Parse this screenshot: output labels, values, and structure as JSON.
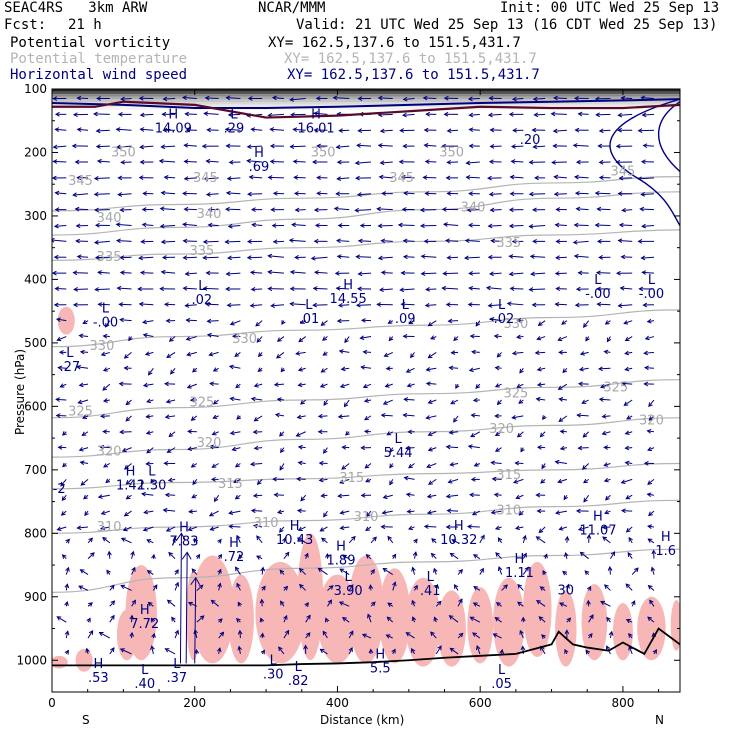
{
  "header": {
    "model": "SEAC4RS   3km ARW",
    "center": "NCAR/MMM",
    "init": "Init: 00 UTC Wed 25 Sep 13",
    "fcst_label": "Fcst:",
    "fcst_value": "21 h",
    "valid": "Valid: 21 UTC Wed 25 Sep 13 (16 CDT Wed 25 Sep 13)",
    "fields": [
      {
        "name": "Potential vorticity",
        "xy": "XY= 162.5,137.6 to 151.5,431.7",
        "color": "#000000"
      },
      {
        "name": "Potential temperature",
        "xy": "XY= 162.5,137.6 to 151.5,431.7",
        "color": "#b4b4b4"
      },
      {
        "name": "Horizontal wind speed",
        "xy": "XY= 162.5,137.6 to 151.5,431.7",
        "color": "#000080"
      }
    ]
  },
  "chart_data": {
    "type": "line",
    "title": "",
    "xlabel": "Distance (km)",
    "ylabel": "Pressure (hPa)",
    "xlim": [
      0,
      880
    ],
    "ylim": [
      1050,
      100
    ],
    "x_ticks": [
      0,
      200,
      400,
      600,
      800
    ],
    "y_ticks": [
      100,
      200,
      300,
      400,
      500,
      600,
      700,
      800,
      900,
      1000
    ],
    "x_end_labels": {
      "left": "S",
      "right": "N"
    },
    "colors": {
      "theta": "#b4b4b4",
      "wind": "#000080",
      "pv_fill": "#f7b7b7",
      "marker": "#000080",
      "terrain": "#000000",
      "tropopause": "#5a0a28"
    },
    "theta_isentropes": [
      {
        "value": 345,
        "p": [
          292,
          282,
          272,
          262,
          248,
          238
        ]
      },
      {
        "value": 340,
        "p": [
          330,
          318,
          305,
          290,
          272,
          262
        ]
      },
      {
        "value": 335,
        "p": [
          370,
          360,
          350,
          340,
          330,
          322
        ]
      },
      {
        "value": 330,
        "p": [
          506,
          490,
          480,
          472,
          460,
          448
        ]
      },
      {
        "value": 325,
        "p": [
          618,
          602,
          590,
          580,
          570,
          558
        ]
      },
      {
        "value": 320,
        "p": [
          680,
          668,
          652,
          640,
          630,
          618
        ]
      },
      {
        "value": 315,
        "p": [
          730,
          720,
          714,
          706,
          700,
          690
        ]
      },
      {
        "value": 310,
        "p": [
          800,
          790,
          780,
          770,
          758,
          748
        ]
      },
      {
        "value": 305,
        "p": [
          893,
          870,
          855,
          845,
          835,
          825
        ]
      }
    ],
    "theta_labels": [
      {
        "text": "350",
        "x": 100,
        "p": 200
      },
      {
        "text": "350",
        "x": 380,
        "p": 200
      },
      {
        "text": "350",
        "x": 560,
        "p": 200
      },
      {
        "text": "345",
        "x": 40,
        "p": 245
      },
      {
        "text": "345",
        "x": 215,
        "p": 240
      },
      {
        "text": "345",
        "x": 490,
        "p": 240
      },
      {
        "text": "345",
        "x": 800,
        "p": 230
      },
      {
        "text": "340",
        "x": 80,
        "p": 303
      },
      {
        "text": "340",
        "x": 220,
        "p": 297
      },
      {
        "text": "340",
        "x": 590,
        "p": 287
      },
      {
        "text": "335",
        "x": 80,
        "p": 365
      },
      {
        "text": "335",
        "x": 210,
        "p": 355
      },
      {
        "text": "335",
        "x": 640,
        "p": 343
      },
      {
        "text": "330",
        "x": 70,
        "p": 505
      },
      {
        "text": "330",
        "x": 270,
        "p": 494
      },
      {
        "text": "330",
        "x": 650,
        "p": 470
      },
      {
        "text": "325",
        "x": 40,
        "p": 608
      },
      {
        "text": "325",
        "x": 210,
        "p": 594
      },
      {
        "text": "325",
        "x": 650,
        "p": 580
      },
      {
        "text": "325",
        "x": 790,
        "p": 570
      },
      {
        "text": "320",
        "x": 80,
        "p": 671
      },
      {
        "text": "320",
        "x": 220,
        "p": 658
      },
      {
        "text": "320",
        "x": 630,
        "p": 636
      },
      {
        "text": "320",
        "x": 840,
        "p": 622
      },
      {
        "text": "315",
        "x": 250,
        "p": 722
      },
      {
        "text": "315",
        "x": 420,
        "p": 713
      },
      {
        "text": "315",
        "x": 640,
        "p": 708
      },
      {
        "text": "310",
        "x": 80,
        "p": 790
      },
      {
        "text": "310",
        "x": 300,
        "p": 784
      },
      {
        "text": "310",
        "x": 440,
        "p": 774
      },
      {
        "text": "310",
        "x": 640,
        "p": 764
      }
    ],
    "pv_extrema": [
      {
        "type": "H",
        "value": "14.09",
        "x": 170,
        "p": 150
      },
      {
        "type": "L",
        "value": ".29",
        "x": 255,
        "p": 150
      },
      {
        "type": "H",
        "value": "16.01",
        "x": 370,
        "p": 150
      },
      {
        "type": "H",
        "value": ".69",
        "x": 290,
        "p": 210
      },
      {
        "type": "L",
        "value": ".02",
        "x": 210,
        "p": 420
      },
      {
        "type": "H",
        "value": "14.55",
        "x": 415,
        "p": 418
      },
      {
        "type": "L",
        "value": "-.00",
        "x": 75,
        "p": 455
      },
      {
        "type": "L",
        "value": ".01",
        "x": 360,
        "p": 450
      },
      {
        "type": "L",
        "value": ".09",
        "x": 495,
        "p": 450
      },
      {
        "type": "L",
        "value": "-.02",
        "x": 630,
        "p": 450
      },
      {
        "type": "L",
        "value": "-.00",
        "x": 765,
        "p": 410
      },
      {
        "type": "L",
        "value": "-.00",
        "x": 840,
        "p": 410
      },
      {
        "type": "L",
        "value": ".27",
        "x": 25,
        "p": 525
      },
      {
        "type": "L",
        "value": "5.44",
        "x": 485,
        "p": 661
      },
      {
        "type": "H",
        "value": "1.42",
        "x": 110,
        "p": 712
      },
      {
        "type": "L",
        "value": "1.30",
        "x": 140,
        "p": 712
      },
      {
        "type": "H",
        "value": "7.83",
        "x": 185,
        "p": 800
      },
      {
        "type": "H",
        "value": "10.43",
        "x": 340,
        "p": 798
      },
      {
        "type": "H",
        "value": "10.32",
        "x": 570,
        "p": 798
      },
      {
        "type": "H",
        "value": "11.07",
        "x": 765,
        "p": 783
      },
      {
        "type": "H",
        "value": ".72",
        "x": 255,
        "p": 825
      },
      {
        "type": "H",
        "value": "1.89",
        "x": 405,
        "p": 830
      },
      {
        "type": "H",
        "value": "1.11",
        "x": 655,
        "p": 850
      },
      {
        "type": "H",
        "value": "1.6",
        "x": 860,
        "p": 815
      },
      {
        "type": "L",
        "value": "3.90",
        "x": 415,
        "p": 878
      },
      {
        "type": "L",
        "value": ".41",
        "x": 530,
        "p": 878
      },
      {
        "type": "H",
        "value": "7.72",
        "x": 130,
        "p": 930
      },
      {
        "type": "H",
        "value": ".53",
        "x": 65,
        "p": 1015
      },
      {
        "type": "H",
        "value": "5.5",
        "x": 460,
        "p": 1000
      },
      {
        "type": "L",
        "value": ".37",
        "x": 175,
        "p": 1015
      },
      {
        "type": "L",
        "value": ".40",
        "x": 130,
        "p": 1025
      },
      {
        "type": "L",
        "value": ".05",
        "x": 630,
        "p": 1025
      },
      {
        "type": "L",
        "value": ".82",
        "x": 345,
        "p": 1020
      },
      {
        "type": "L",
        "value": ".30",
        "x": 310,
        "p": 1010
      }
    ],
    "contour_labels": [
      {
        "text": ".20",
        "x": 670,
        "p": 180
      },
      {
        "text": "-2",
        "x": 10,
        "p": 730
      },
      {
        "text": "30",
        "x": 720,
        "p": 890
      }
    ],
    "terrain_surface": {
      "x": [
        0,
        100,
        200,
        300,
        350,
        400,
        450,
        500,
        550,
        600,
        650,
        700,
        710,
        730,
        750,
        780,
        800,
        830,
        850,
        880
      ],
      "p": [
        1008,
        1008,
        1008,
        1008,
        1006,
        1005,
        1003,
        1000,
        996,
        993,
        990,
        975,
        955,
        975,
        980,
        985,
        972,
        990,
        950,
        975
      ]
    },
    "tropopause": {
      "x": [
        0,
        60,
        100,
        200,
        300,
        400,
        500,
        600,
        700,
        800,
        880
      ],
      "p": [
        128,
        128,
        120,
        125,
        145,
        142,
        135,
        128,
        130,
        130,
        125
      ]
    },
    "wind_jet": {
      "x": [
        0,
        100,
        200,
        300,
        400,
        500,
        600,
        700,
        800,
        880
      ],
      "p": [
        122,
        125,
        130,
        130,
        128,
        125,
        122,
        120,
        118,
        116
      ]
    }
  }
}
